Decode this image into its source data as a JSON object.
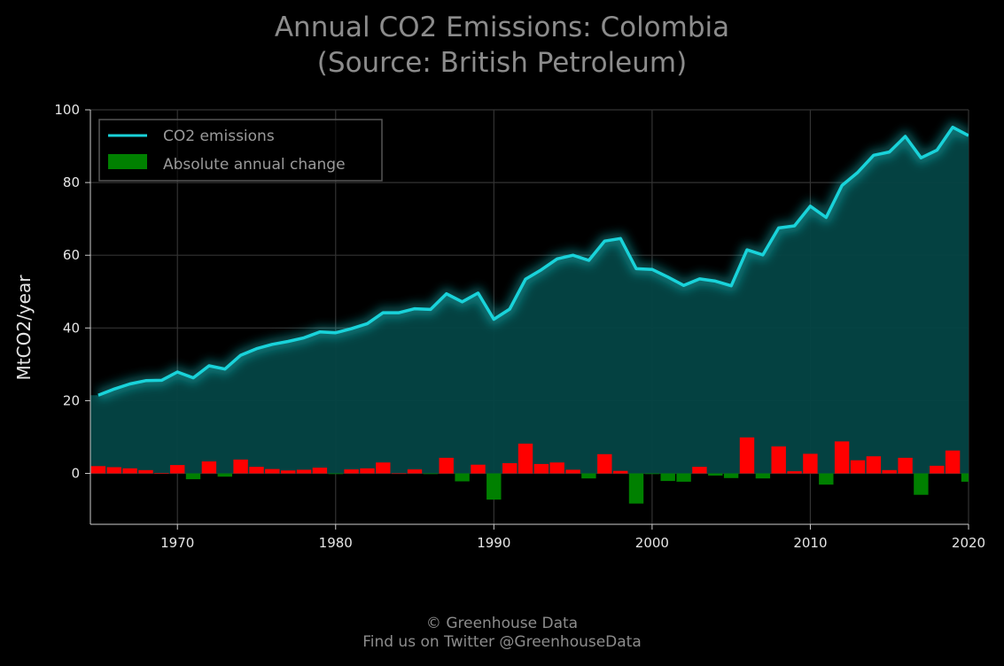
{
  "header": {
    "title_line1": "Annual CO2 Emissions: Colombia",
    "title_line2": "(Source: British Petroleum)"
  },
  "footer": {
    "line1": "© Greenhouse Data",
    "line2": "Find us on Twitter @GreenhouseData"
  },
  "colors": {
    "line": "#19d3da",
    "area": "#044444",
    "increase": "#ff0000",
    "decrease": "#008000",
    "background": "#000000",
    "grid": "#333333"
  },
  "chart_data": {
    "type": "line",
    "ylabel": "MtCO2/year",
    "xlim": [
      1964.5,
      2020
    ],
    "ylim": [
      -14,
      100
    ],
    "grid": true,
    "legend_position": "top-left",
    "x_ticks": [
      1970,
      1980,
      1990,
      2000,
      2010,
      2020
    ],
    "y_ticks": [
      0,
      20,
      40,
      60,
      80,
      100
    ],
    "x": [
      1965,
      1966,
      1967,
      1968,
      1969,
      1970,
      1971,
      1972,
      1973,
      1974,
      1975,
      1976,
      1977,
      1978,
      1979,
      1980,
      1981,
      1982,
      1983,
      1984,
      1985,
      1986,
      1987,
      1988,
      1989,
      1990,
      1991,
      1992,
      1993,
      1994,
      1995,
      1996,
      1997,
      1998,
      1999,
      2000,
      2001,
      2002,
      2003,
      2004,
      2005,
      2006,
      2007,
      2008,
      2009,
      2010,
      2011,
      2012,
      2013,
      2014,
      2015,
      2016,
      2017,
      2018,
      2019,
      2020
    ],
    "series": [
      {
        "name": "CO2 emissions",
        "values": [
          21.5,
          23.2,
          24.6,
          25.5,
          25.6,
          27.9,
          26.3,
          29.6,
          28.7,
          32.5,
          34.3,
          35.5,
          36.3,
          37.3,
          38.9,
          38.7,
          39.8,
          41.2,
          44.2,
          44.2,
          45.3,
          45.1,
          49.4,
          47.2,
          49.6,
          42.4,
          45.2,
          53.4,
          56.0,
          59.0,
          60.0,
          58.6,
          63.9,
          64.6,
          56.3,
          56.1,
          54.0,
          51.7,
          53.5,
          52.9,
          51.6,
          61.5,
          60.1,
          67.5,
          68.1,
          73.5,
          70.4,
          79.2,
          82.8,
          87.5,
          88.4,
          92.7,
          86.8,
          88.9,
          95.2,
          92.9
        ]
      },
      {
        "name": "Absolute annual change",
        "values": [
          2.0,
          1.7,
          1.4,
          0.9,
          0.1,
          2.3,
          -1.6,
          3.3,
          -0.9,
          3.8,
          1.8,
          1.2,
          0.8,
          1.0,
          1.6,
          -0.2,
          1.1,
          1.4,
          3.0,
          0.0,
          1.1,
          -0.2,
          4.3,
          -2.2,
          2.4,
          -7.2,
          2.8,
          8.2,
          2.6,
          3.0,
          1.0,
          -1.4,
          5.3,
          0.7,
          -8.3,
          -0.2,
          -2.1,
          -2.3,
          1.8,
          -0.6,
          -1.3,
          9.9,
          -1.4,
          7.4,
          0.6,
          5.4,
          -3.1,
          8.8,
          3.6,
          4.7,
          0.9,
          4.3,
          -5.9,
          2.1,
          6.3,
          -2.3
        ]
      }
    ]
  }
}
